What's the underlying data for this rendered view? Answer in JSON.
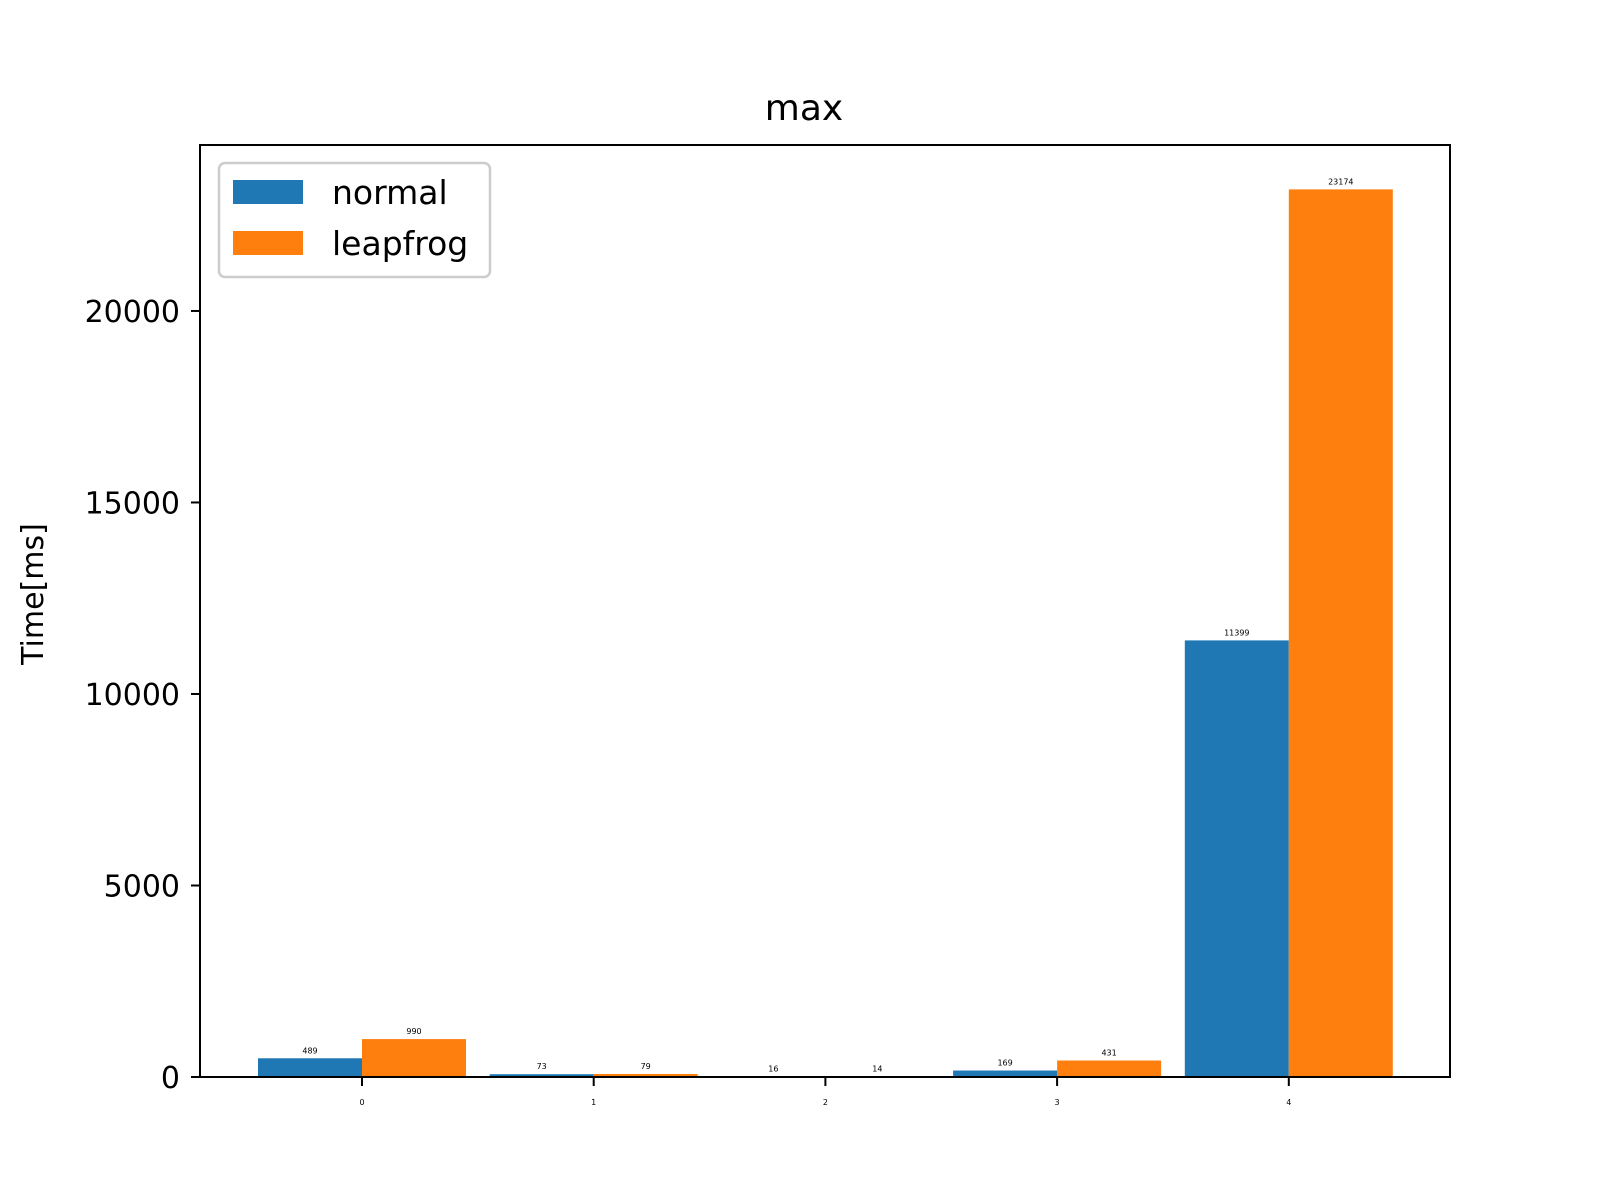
{
  "chart_data": {
    "type": "bar",
    "title": "max",
    "xlabel": "",
    "ylabel": "Time[ms]",
    "categories": [
      "0",
      "1",
      "2",
      "3",
      "4"
    ],
    "series": [
      {
        "name": "normal",
        "color": "#1f77b4",
        "values": [
          489,
          73,
          16,
          169,
          11399
        ],
        "labels": [
          "489",
          "73",
          "16",
          "169",
          "11399"
        ]
      },
      {
        "name": "leapfrog",
        "color": "#ff7f0e",
        "values": [
          990,
          79,
          14,
          431,
          23174
        ],
        "labels": [
          "990",
          "79",
          "14",
          "431",
          "23174"
        ]
      }
    ],
    "ylim": [
      0,
      24333
    ],
    "yticks": [
      0,
      5000,
      10000,
      15000,
      20000
    ],
    "ytick_labels": [
      "0",
      "5000",
      "10000",
      "15000",
      "20000"
    ],
    "grid": false,
    "legend": "upper left"
  }
}
